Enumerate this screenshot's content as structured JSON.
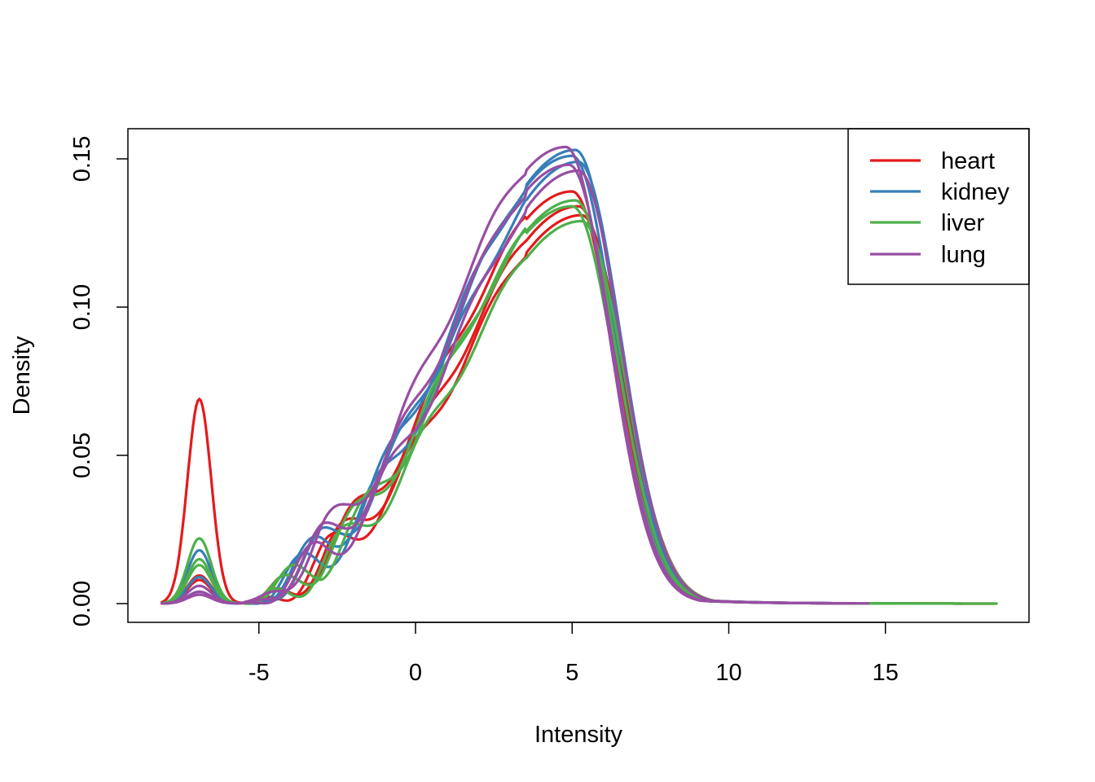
{
  "chart_data": {
    "type": "line",
    "title": "",
    "xlabel": "Intensity",
    "ylabel": "Density",
    "xlim": [
      -8.2,
      18.7
    ],
    "ylim": [
      0,
      0.16
    ],
    "xticks": [
      -5,
      0,
      5,
      10,
      15
    ],
    "xtick_labels": [
      "-5",
      "0",
      "5",
      "10",
      "15"
    ],
    "yticks": [
      0,
      0.05,
      0.1,
      0.15
    ],
    "ytick_labels": [
      "0.00",
      "0.05",
      "0.10",
      "0.15"
    ],
    "grid": false,
    "legend_position": "top-right",
    "legend": [
      {
        "label": "heart",
        "color": "#e41a1c"
      },
      {
        "label": "kidney",
        "color": "#377eb8"
      },
      {
        "label": "liver",
        "color": "#4daf4a"
      },
      {
        "label": "lung",
        "color": "#984ea3"
      }
    ],
    "series": [
      {
        "group": "heart",
        "color": "#e41a1c",
        "peak_x": 5.0,
        "peak_y": 0.139,
        "low_peak": 0.069,
        "x_end": 18.5
      },
      {
        "group": "heart",
        "color": "#e41a1c",
        "peak_x": 5.2,
        "peak_y": 0.134,
        "low_peak": 0.0095,
        "x_end": 17.0
      },
      {
        "group": "heart",
        "color": "#e41a1c",
        "peak_x": 5.3,
        "peak_y": 0.131,
        "low_peak": 0.008,
        "x_end": 16.5
      },
      {
        "group": "kidney",
        "color": "#377eb8",
        "peak_x": 5.1,
        "peak_y": 0.153,
        "low_peak": 0.018,
        "x_end": 16.0
      },
      {
        "group": "kidney",
        "color": "#377eb8",
        "peak_x": 5.0,
        "peak_y": 0.151,
        "low_peak": 0.009,
        "x_end": 15.5
      },
      {
        "group": "kidney",
        "color": "#377eb8",
        "peak_x": 5.2,
        "peak_y": 0.149,
        "low_peak": 0.004,
        "x_end": 15.0
      },
      {
        "group": "liver",
        "color": "#4daf4a",
        "peak_x": 5.1,
        "peak_y": 0.136,
        "low_peak": 0.022,
        "x_end": 18.6
      },
      {
        "group": "liver",
        "color": "#4daf4a",
        "peak_x": 5.0,
        "peak_y": 0.134,
        "low_peak": 0.015,
        "x_end": 17.5
      },
      {
        "group": "liver",
        "color": "#4daf4a",
        "peak_x": 5.3,
        "peak_y": 0.129,
        "low_peak": 0.013,
        "x_end": 17.0
      },
      {
        "group": "lung",
        "color": "#984ea3",
        "peak_x": 4.8,
        "peak_y": 0.154,
        "low_peak": 0.006,
        "x_end": 14.0
      },
      {
        "group": "lung",
        "color": "#984ea3",
        "peak_x": 4.9,
        "peak_y": 0.148,
        "low_peak": 0.004,
        "x_end": 14.5
      },
      {
        "group": "lung",
        "color": "#984ea3",
        "peak_x": 5.2,
        "peak_y": 0.146,
        "low_peak": 0.003,
        "x_end": 13.8
      }
    ]
  }
}
